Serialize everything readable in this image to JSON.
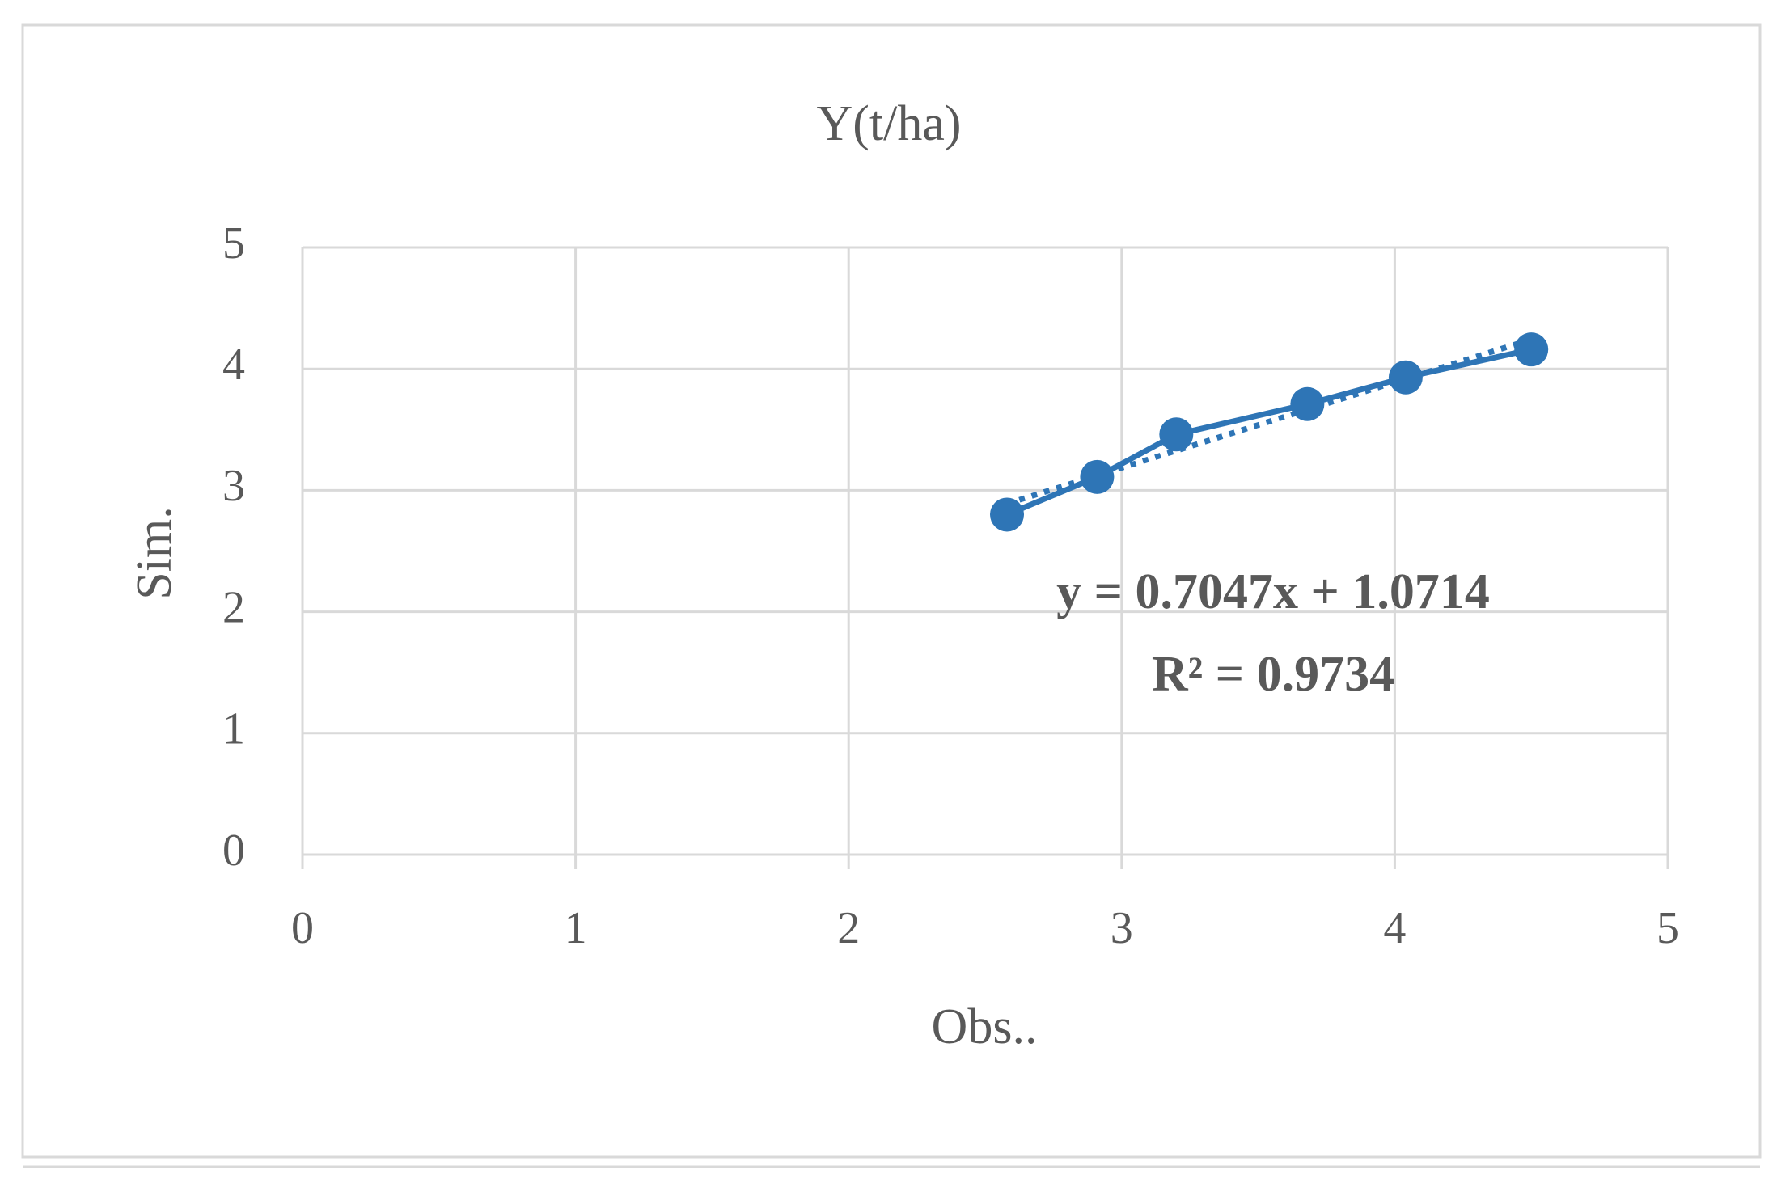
{
  "chart_data": {
    "type": "scatter",
    "title": "Y(t/ha)",
    "x_label": "Obs..",
    "y_label": "Sim.",
    "series": [
      {
        "name": "Y(t/ha)",
        "color": "#2e75b6",
        "x": [
          2.58,
          2.91,
          3.2,
          3.68,
          4.04,
          4.5
        ],
        "values": [
          2.8,
          3.11,
          3.46,
          3.71,
          3.93,
          4.16
        ]
      }
    ],
    "trendline": {
      "slope": 0.7047,
      "intercept": 1.0714,
      "style": "dotted"
    },
    "annotations": [
      "y = 0.7047x + 1.0714",
      "R² = 0.9734"
    ],
    "xlim": [
      0,
      5
    ],
    "xticks": [
      0,
      1,
      2,
      3,
      4,
      5
    ],
    "ylim": [
      0,
      5
    ],
    "yticks": [
      0,
      1,
      2,
      3,
      4,
      5
    ],
    "grid": true
  }
}
